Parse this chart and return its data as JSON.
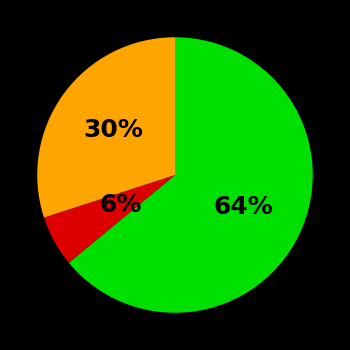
{
  "slices": [
    64,
    6,
    30
  ],
  "colors": [
    "#00e000",
    "#dd0000",
    "#ffa500"
  ],
  "labels": [
    "64%",
    "6%",
    "30%"
  ],
  "label_radii": [
    0.55,
    0.45,
    0.55
  ],
  "background_color": "#000000",
  "text_color": "#000000",
  "startangle": 90,
  "font_size": 18,
  "font_weight": "bold"
}
